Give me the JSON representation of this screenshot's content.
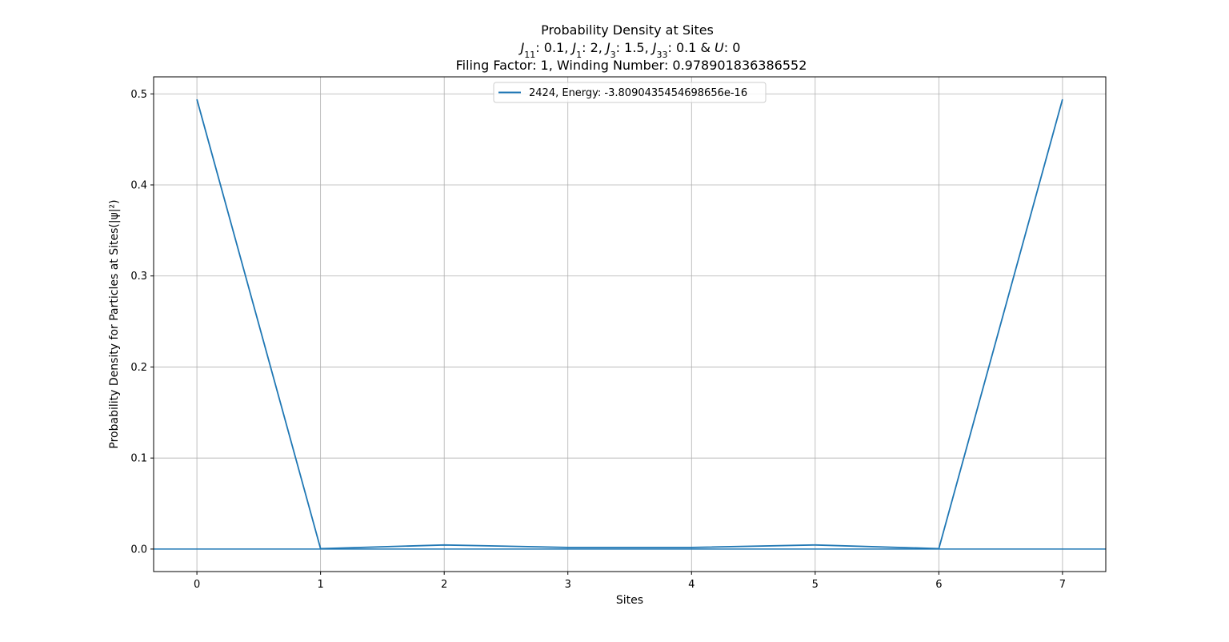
{
  "chart_data": {
    "type": "line",
    "title": "Probability Density at Sites",
    "subtitle": {
      "terms": [
        {
          "symbol": "J",
          "sub": "11",
          "value": "0.1",
          "sep": ", "
        },
        {
          "symbol": "J",
          "sub": "1",
          "value": "2",
          "sep": ", "
        },
        {
          "symbol": "J",
          "sub": "3",
          "value": "1.5",
          "sep": ", "
        },
        {
          "symbol": "J",
          "sub": "33",
          "value": "0.1",
          "sep": " & "
        },
        {
          "symbol": "U",
          "sub": "",
          "value": "0",
          "sep": ""
        }
      ]
    },
    "subtitle2": "Filing Factor: 1, Winding Number: 0.978901836386552",
    "xlabel": "Sites",
    "ylabel": "Probability Density for Particles at Sites(|ψ|²)",
    "xlim": [
      -0.35,
      7.35
    ],
    "ylim": [
      -0.0247,
      0.5187
    ],
    "xticks": [
      0,
      1,
      2,
      3,
      4,
      5,
      6,
      7
    ],
    "yticks": [
      0.0,
      0.1,
      0.2,
      0.3,
      0.4,
      0.5
    ],
    "ytick_labels": [
      "0.0",
      "0.1",
      "0.2",
      "0.3",
      "0.4",
      "0.5"
    ],
    "grid": true,
    "legend_position": "upper-center",
    "series": [
      {
        "name": "2424, Energy: -3.8090435454698656e-16",
        "color": "#1f77b4",
        "x": [
          0,
          1,
          2,
          3,
          4,
          5,
          6,
          7
        ],
        "y": [
          0.494,
          0.0005,
          0.0045,
          0.0018,
          0.0018,
          0.0045,
          0.0005,
          0.494
        ]
      }
    ],
    "hlines": [
      {
        "y": 0.0,
        "color": "#1f77b4"
      }
    ]
  }
}
